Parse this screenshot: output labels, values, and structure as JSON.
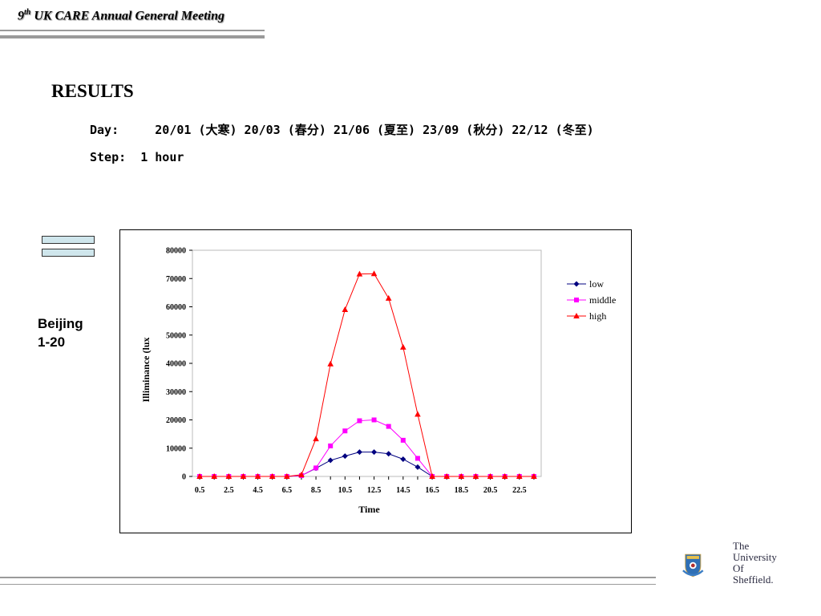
{
  "header": {
    "ordinal": "9",
    "ordinal_suffix": "th",
    "title": "UK CARE Annual General Meeting"
  },
  "main": {
    "heading": "RESULTS",
    "day_line": "Day:     20/01 (大寒) 20/03 (春分) 21/06 (夏至) 23/09 (秋分) 22/12 (冬至)",
    "step_line": "Step:  1 hour",
    "city": "Beijing",
    "day_range": "1-20"
  },
  "logo": {
    "line1": "The",
    "line2": "University",
    "line3": "Of",
    "line4": "Sheffield."
  },
  "chart_data": {
    "type": "line",
    "xlabel": "Time",
    "ylabel": "Illiminance (lux",
    "x": [
      0.5,
      1.5,
      2.5,
      3.5,
      4.5,
      5.5,
      6.5,
      7.5,
      8.5,
      9.5,
      10.5,
      11.5,
      12.5,
      13.5,
      14.5,
      15.5,
      16.5,
      17.5,
      18.5,
      19.5,
      20.5,
      21.5,
      22.5,
      23.5
    ],
    "x_tick_labels": [
      "0.5",
      "2.5",
      "4.5",
      "6.5",
      "8.5",
      "10.5",
      "12.5",
      "14.5",
      "16.5",
      "18.5",
      "20.5",
      "22.5"
    ],
    "y_tick_labels": [
      "0",
      "10000",
      "20000",
      "30000",
      "40000",
      "50000",
      "60000",
      "70000",
      "80000"
    ],
    "ylim": [
      0,
      80000
    ],
    "grid": false,
    "legend_position": "right",
    "series": [
      {
        "name": "low",
        "color": "#000080",
        "marker": "diamond",
        "values": [
          0,
          0,
          0,
          0,
          0,
          0,
          0,
          300,
          2900,
          5700,
          7200,
          8600,
          8600,
          8000,
          6100,
          3300,
          0,
          0,
          0,
          0,
          0,
          0,
          0,
          0
        ]
      },
      {
        "name": "middle",
        "color": "#ff00ff",
        "marker": "square",
        "values": [
          0,
          0,
          0,
          0,
          0,
          0,
          0,
          300,
          3000,
          10800,
          16100,
          19700,
          20000,
          17700,
          12800,
          6400,
          0,
          0,
          0,
          0,
          0,
          0,
          0,
          0
        ]
      },
      {
        "name": "high",
        "color": "#ff0000",
        "marker": "triangle",
        "values": [
          0,
          0,
          0,
          0,
          0,
          0,
          0,
          600,
          13300,
          39800,
          59000,
          71600,
          71700,
          63000,
          45700,
          22000,
          0,
          0,
          0,
          0,
          0,
          0,
          0,
          0
        ]
      }
    ]
  }
}
